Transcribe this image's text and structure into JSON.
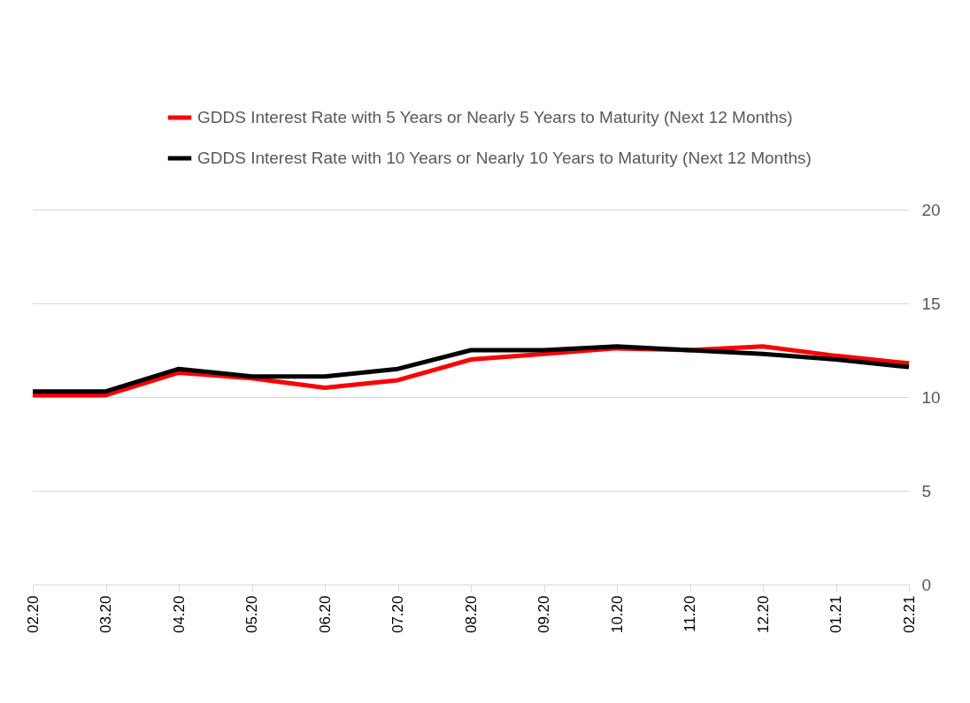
{
  "chart_data": {
    "type": "line",
    "categories": [
      "02.20",
      "03.20",
      "04.20",
      "05.20",
      "06.20",
      "07.20",
      "08.20",
      "09.20",
      "10.20",
      "11.20",
      "12.20",
      "01.21",
      "02.21"
    ],
    "series": [
      {
        "name": "GDDS Interest Rate with 5 Years or Nearly 5 Years to Maturity (Next 12 Months)",
        "color": "#ff0000",
        "values": [
          10.1,
          10.1,
          11.3,
          11.0,
          10.5,
          10.9,
          12.0,
          12.3,
          12.6,
          12.5,
          12.7,
          12.2,
          11.8
        ]
      },
      {
        "name": "GDDS Interest Rate with 10 Years or Nearly 10 Years to Maturity (Next 12 Months)",
        "color": "#000000",
        "values": [
          10.3,
          10.3,
          11.5,
          11.1,
          11.1,
          11.5,
          12.5,
          12.5,
          12.7,
          12.5,
          12.3,
          12.0,
          11.6
        ]
      }
    ],
    "ylim": [
      0,
      20
    ],
    "yticks": [
      0,
      5,
      10,
      15,
      20
    ],
    "grid": "y",
    "legend": "top left",
    "line_style": "solid",
    "marker": "none"
  }
}
